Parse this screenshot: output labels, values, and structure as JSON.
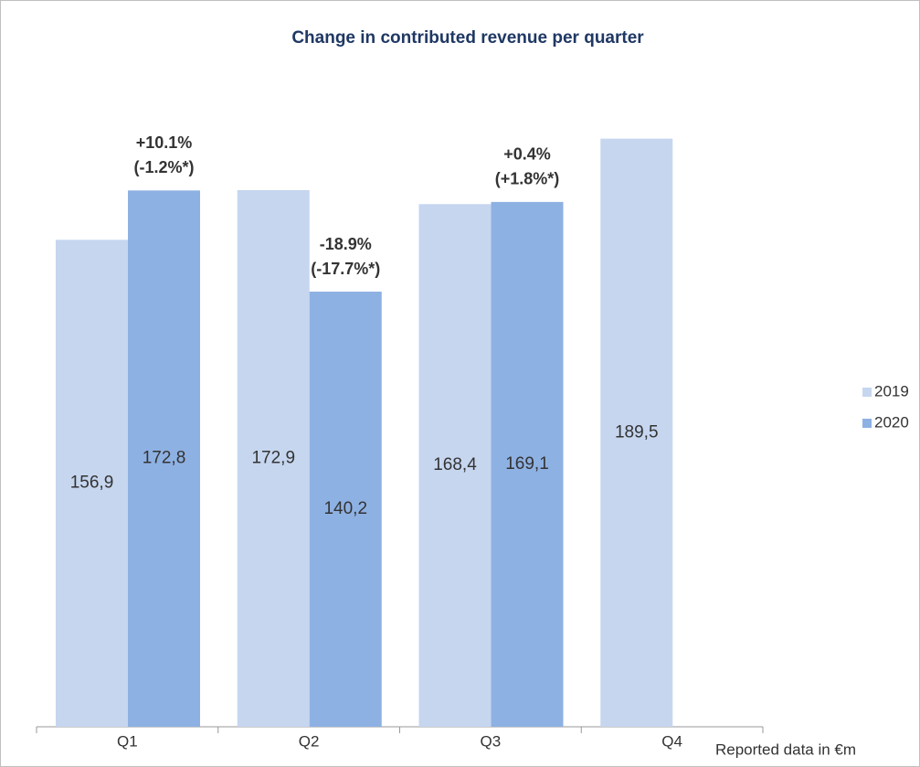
{
  "chart_data": {
    "type": "bar",
    "title": "Change in contributed revenue per quarter",
    "categories": [
      "Q1",
      "Q2",
      "Q3",
      "Q4"
    ],
    "series": [
      {
        "name": "2019",
        "color": "#c6d6ef",
        "values": [
          156.9,
          172.9,
          168.4,
          189.5
        ],
        "value_labels": [
          "156,9",
          "172,9",
          "168,4",
          "189,5"
        ]
      },
      {
        "name": "2020",
        "color": "#8eb1e3",
        "values": [
          172.8,
          140.2,
          169.1,
          null
        ],
        "value_labels": [
          "172,8",
          "140,2",
          "169,1",
          null
        ]
      }
    ],
    "annotations": [
      [
        "+10.1%",
        "(-1.2%*)"
      ],
      [
        "-18.9%",
        "(-17.7%*)"
      ],
      [
        "+0.4%",
        "(+1.8%*)"
      ],
      null
    ],
    "unit_label": "Reported data in €m",
    "ylim": [
      0,
      200
    ],
    "legend": "right"
  }
}
